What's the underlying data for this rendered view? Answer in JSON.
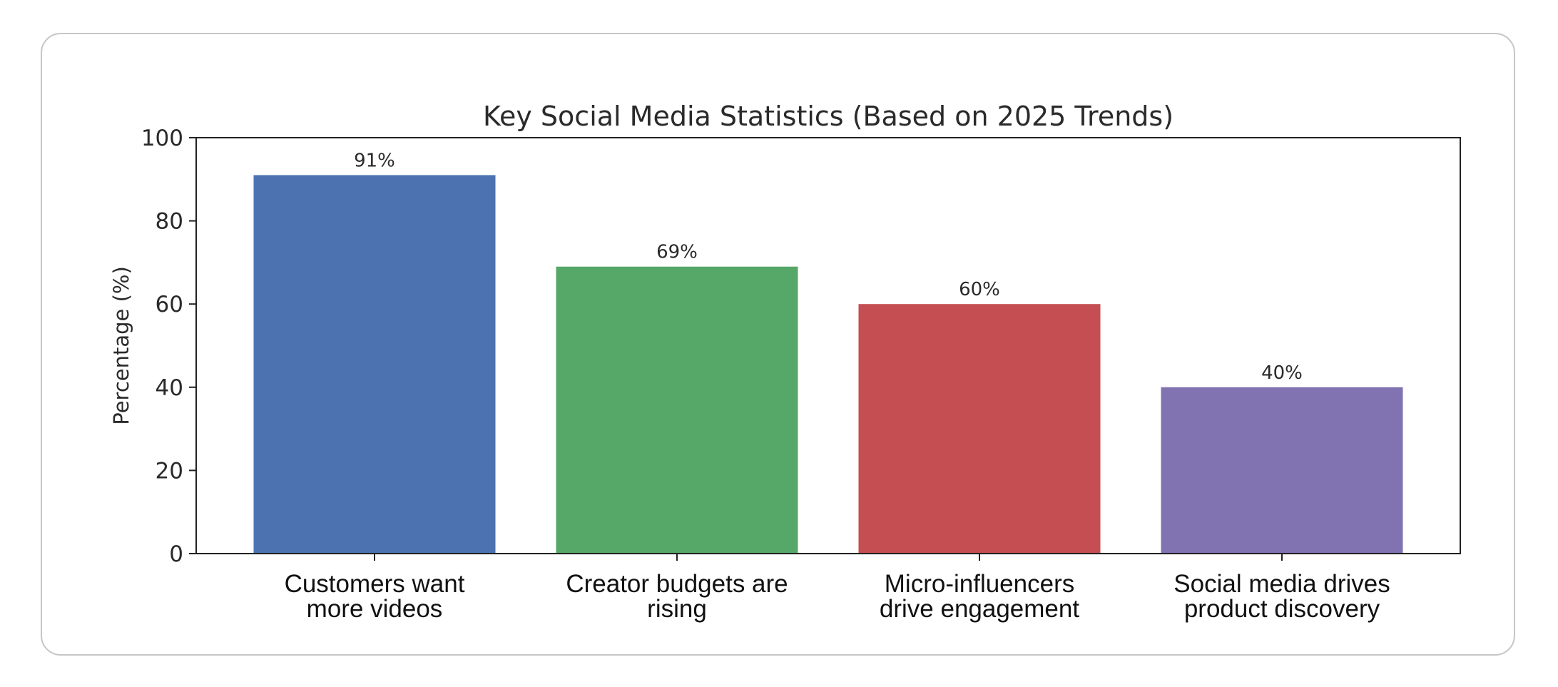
{
  "chart_data": {
    "type": "bar",
    "title": "Key Social Media Statistics (Based on 2025 Trends)",
    "xlabel": "",
    "ylabel": "Percentage (%)",
    "ylim": [
      0,
      100
    ],
    "yticks": [
      0,
      20,
      40,
      60,
      80,
      100
    ],
    "grid": false,
    "categories": [
      [
        "Customers want",
        "more videos"
      ],
      [
        "Creator budgets are",
        "rising"
      ],
      [
        "Micro-influencers",
        "drive engagement"
      ],
      [
        "Social media drives",
        "product discovery"
      ]
    ],
    "values": [
      91,
      69,
      60,
      40
    ],
    "value_labels": [
      "91%",
      "69%",
      "60%",
      "40%"
    ],
    "colors": [
      "#4c72b0",
      "#55a868",
      "#c44e52",
      "#8172b2"
    ]
  }
}
